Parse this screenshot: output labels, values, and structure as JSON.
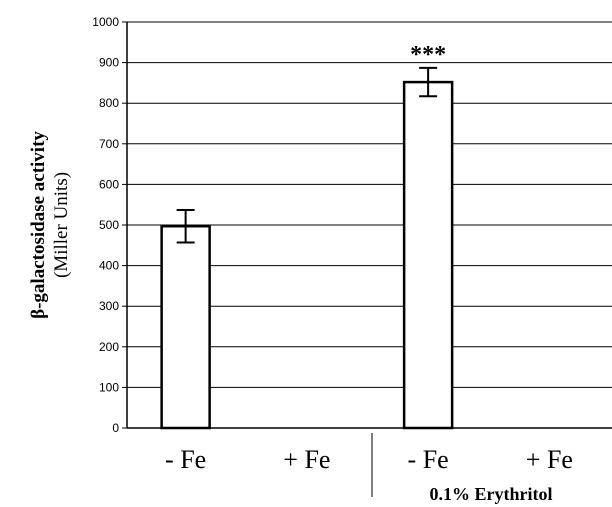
{
  "chart_data": {
    "type": "bar",
    "categories": [
      "- Fe",
      "+ Fe",
      "- Fe",
      "+ Fe"
    ],
    "values": [
      497,
      0,
      852,
      0
    ],
    "errors": [
      40,
      0,
      35,
      0
    ],
    "ylim": [
      0,
      1000
    ],
    "ytick_step": 100,
    "yticks": [
      "0",
      "100",
      "200",
      "300",
      "400",
      "500",
      "600",
      "700",
      "800",
      "900",
      "1000"
    ],
    "ylabel": "β-galactosidase activity",
    "ylabel_unit": "(Miller Units)",
    "xlabel": "",
    "title": "",
    "grid": true,
    "annotations": [
      {
        "category_index": 2,
        "text": "***"
      }
    ],
    "group_label": "0.1% Erythritol",
    "group_category_indices": [
      2,
      3
    ],
    "bar_fill": "#ffffff",
    "bar_stroke": "#000000"
  }
}
